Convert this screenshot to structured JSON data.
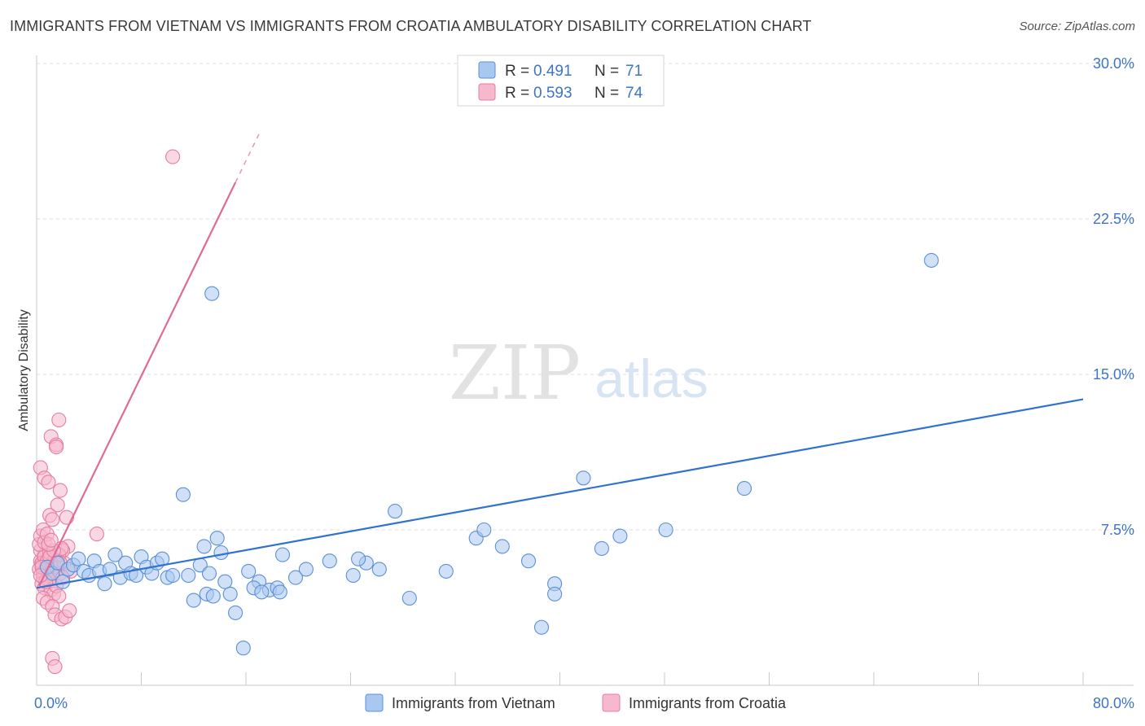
{
  "title": "IMMIGRANTS FROM VIETNAM VS IMMIGRANTS FROM CROATIA AMBULATORY DISABILITY CORRELATION CHART",
  "source": "Source: ZipAtlas.com",
  "watermark": {
    "zip": "ZIP",
    "atlas": "atlas"
  },
  "colors": {
    "vietnam_fill": "#a9c8f0",
    "vietnam_stroke": "#5b8fd6",
    "vietnam_line": "#2f72d0",
    "croatia_fill": "#f6b8cc",
    "croatia_stroke": "#e77ca0",
    "croatia_line": "#e06a96",
    "grid": "#dddddd",
    "tick_label": "#3d74c8"
  },
  "legend": {
    "entries": [
      {
        "name": "Immigrants from Vietnam",
        "r_label": "R =",
        "r_value": "0.491",
        "n_label": "N =",
        "n_value": "71"
      },
      {
        "name": "Immigrants from Croatia",
        "r_label": "R =",
        "r_value": "0.593",
        "n_label": "N =",
        "n_value": "74"
      }
    ]
  },
  "chart_data": {
    "type": "scatter",
    "title": "IMMIGRANTS FROM VIETNAM VS IMMIGRANTS FROM CROATIA AMBULATORY DISABILITY CORRELATION CHART",
    "xlabel": "",
    "ylabel": "Ambulatory Disability",
    "xlim": [
      0,
      80
    ],
    "ylim": [
      0,
      30
    ],
    "x_tick_labels": [
      "0.0%",
      "80.0%"
    ],
    "y_ticks": [
      7.5,
      15.0,
      22.5,
      30.0
    ],
    "y_tick_labels": [
      "7.5%",
      "15.0%",
      "22.5%",
      "30.0%"
    ],
    "grid": true,
    "legend_position": "top-center",
    "series": [
      {
        "name": "Immigrants from Vietnam",
        "trend": {
          "x": [
            0,
            80
          ],
          "y": [
            4.7,
            13.8
          ],
          "dashed_from": null
        },
        "points": [
          [
            0.8,
            5.7
          ],
          [
            1.2,
            5.4
          ],
          [
            1.6,
            5.9
          ],
          [
            2.0,
            5.0
          ],
          [
            2.4,
            5.6
          ],
          [
            2.8,
            5.8
          ],
          [
            3.2,
            6.1
          ],
          [
            3.6,
            5.5
          ],
          [
            4.0,
            5.3
          ],
          [
            4.4,
            6.0
          ],
          [
            4.8,
            5.5
          ],
          [
            5.2,
            4.9
          ],
          [
            5.6,
            5.6
          ],
          [
            6.0,
            6.3
          ],
          [
            6.4,
            5.2
          ],
          [
            6.8,
            5.9
          ],
          [
            7.2,
            5.4
          ],
          [
            7.6,
            5.3
          ],
          [
            8.0,
            6.2
          ],
          [
            8.4,
            5.7
          ],
          [
            8.8,
            5.4
          ],
          [
            9.2,
            5.9
          ],
          [
            9.6,
            6.1
          ],
          [
            10.0,
            5.2
          ],
          [
            10.4,
            5.3
          ],
          [
            11.2,
            9.2
          ],
          [
            11.6,
            5.3
          ],
          [
            12.0,
            4.1
          ],
          [
            12.5,
            5.8
          ],
          [
            12.8,
            6.7
          ],
          [
            13.2,
            5.4
          ],
          [
            14.4,
            5.0
          ],
          [
            13.0,
            4.4
          ],
          [
            13.5,
            4.3
          ],
          [
            13.8,
            7.1
          ],
          [
            14.8,
            4.4
          ],
          [
            15.2,
            3.5
          ],
          [
            15.8,
            1.8
          ],
          [
            16.2,
            5.5
          ],
          [
            17.0,
            5.0
          ],
          [
            17.8,
            4.6
          ],
          [
            18.4,
            4.7
          ],
          [
            18.8,
            6.3
          ],
          [
            19.8,
            5.2
          ],
          [
            13.4,
            18.9
          ],
          [
            16.6,
            4.7
          ],
          [
            17.2,
            4.5
          ],
          [
            18.6,
            4.5
          ],
          [
            20.6,
            5.6
          ],
          [
            22.4,
            6.0
          ],
          [
            24.2,
            5.3
          ],
          [
            25.2,
            5.9
          ],
          [
            26.2,
            5.6
          ],
          [
            27.4,
            8.4
          ],
          [
            24.6,
            6.1
          ],
          [
            28.5,
            4.2
          ],
          [
            31.3,
            5.5
          ],
          [
            33.6,
            7.1
          ],
          [
            34.2,
            7.5
          ],
          [
            35.6,
            6.7
          ],
          [
            37.6,
            6.0
          ],
          [
            39.6,
            4.9
          ],
          [
            39.6,
            4.4
          ],
          [
            41.8,
            10.0
          ],
          [
            38.6,
            2.8
          ],
          [
            43.2,
            6.6
          ],
          [
            44.6,
            7.2
          ],
          [
            48.1,
            7.5
          ],
          [
            54.1,
            9.5
          ],
          [
            68.4,
            20.5
          ],
          [
            14.1,
            6.4
          ]
        ]
      },
      {
        "name": "Immigrants from Croatia",
        "trend": {
          "x": [
            0.2,
            17.0
          ],
          "y": [
            4.8,
            26.6
          ],
          "dashed_from": 15.2
        },
        "points": [
          [
            0.2,
            5.6
          ],
          [
            0.3,
            6.0
          ],
          [
            0.4,
            5.8
          ],
          [
            0.5,
            5.4
          ],
          [
            0.6,
            6.3
          ],
          [
            0.7,
            5.9
          ],
          [
            0.8,
            5.7
          ],
          [
            0.9,
            6.1
          ],
          [
            1.0,
            5.5
          ],
          [
            1.1,
            5.8
          ],
          [
            0.3,
            6.5
          ],
          [
            0.4,
            5.9
          ],
          [
            0.5,
            5.2
          ],
          [
            0.6,
            6.2
          ],
          [
            0.7,
            5.6
          ],
          [
            0.8,
            6.0
          ],
          [
            0.9,
            5.3
          ],
          [
            1.0,
            6.4
          ],
          [
            1.2,
            5.8
          ],
          [
            1.3,
            5.5
          ],
          [
            1.4,
            6.1
          ],
          [
            1.5,
            5.7
          ],
          [
            1.6,
            6.0
          ],
          [
            1.8,
            5.4
          ],
          [
            0.2,
            6.8
          ],
          [
            0.3,
            7.2
          ],
          [
            0.5,
            7.5
          ],
          [
            0.6,
            6.9
          ],
          [
            0.8,
            7.3
          ],
          [
            0.4,
            4.9
          ],
          [
            0.6,
            4.7
          ],
          [
            0.9,
            5.1
          ],
          [
            1.1,
            4.6
          ],
          [
            1.3,
            4.4
          ],
          [
            1.5,
            4.8
          ],
          [
            1.7,
            4.3
          ],
          [
            0.5,
            4.2
          ],
          [
            0.8,
            4.0
          ],
          [
            1.2,
            3.8
          ],
          [
            1.4,
            3.4
          ],
          [
            1.9,
            3.2
          ],
          [
            2.2,
            3.3
          ],
          [
            2.5,
            3.6
          ],
          [
            0.3,
            10.5
          ],
          [
            0.6,
            10.0
          ],
          [
            0.9,
            9.8
          ],
          [
            1.0,
            8.2
          ],
          [
            1.2,
            8.0
          ],
          [
            1.6,
            8.7
          ],
          [
            1.8,
            9.4
          ],
          [
            1.1,
            12.0
          ],
          [
            1.5,
            11.6
          ],
          [
            1.7,
            12.8
          ],
          [
            1.5,
            11.5
          ],
          [
            2.3,
            8.1
          ],
          [
            2.4,
            6.7
          ],
          [
            2.0,
            6.5
          ],
          [
            2.1,
            5.9
          ],
          [
            1.7,
            6.3
          ],
          [
            1.9,
            6.6
          ],
          [
            4.6,
            7.3
          ],
          [
            2.6,
            5.5
          ],
          [
            1.2,
            1.3
          ],
          [
            1.4,
            0.9
          ],
          [
            1.0,
            6.2
          ],
          [
            0.7,
            5.0
          ],
          [
            0.4,
            5.7
          ],
          [
            0.3,
            5.3
          ],
          [
            1.3,
            6.5
          ],
          [
            1.8,
            5.9
          ],
          [
            2.0,
            5.2
          ],
          [
            0.9,
            6.8
          ],
          [
            1.1,
            7.0
          ],
          [
            10.4,
            25.5
          ]
        ]
      }
    ]
  }
}
